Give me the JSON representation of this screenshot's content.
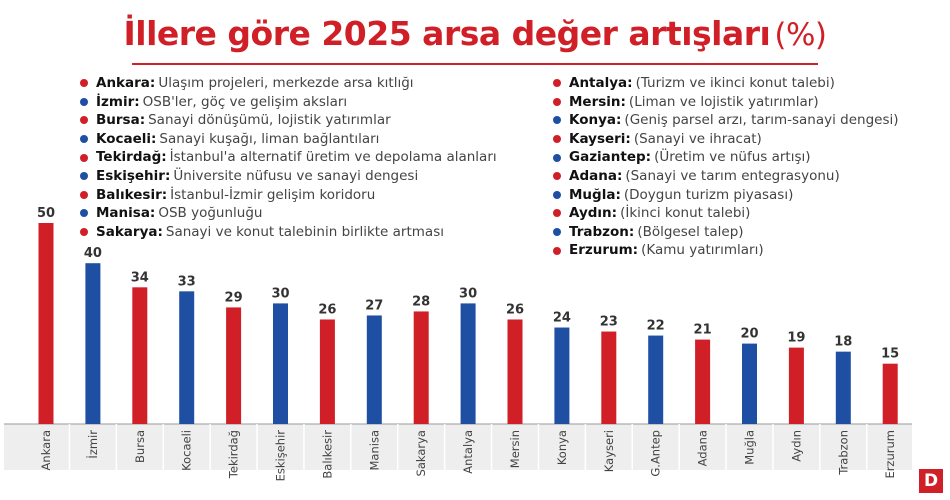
{
  "title": {
    "main": "İllere göre 2025 arsa değer artışları",
    "unit": "(%)"
  },
  "colors": {
    "red": "#d01f26",
    "blue": "#1f4fa3",
    "axis_bg": "#eeeeee",
    "gridline": "#cfcfcf"
  },
  "legend": {
    "left": [
      {
        "city": "Ankara:",
        "desc": "Ulaşım projeleri, merkezde arsa kıtlığı",
        "color": "red"
      },
      {
        "city": "İzmir:",
        "desc": "OSB'ler, göç ve gelişim aksları",
        "color": "blue"
      },
      {
        "city": "Bursa:",
        "desc": "Sanayi dönüşümü, lojistik yatırımlar",
        "color": "red"
      },
      {
        "city": "Kocaeli:",
        "desc": "Sanayi kuşağı, liman bağlantıları",
        "color": "blue"
      },
      {
        "city": "Tekirdağ:",
        "desc": "İstanbul'a alternatif üretim ve depolama alanları",
        "color": "red"
      },
      {
        "city": "Eskişehir:",
        "desc": "Üniversite nüfusu ve sanayi dengesi",
        "color": "blue"
      },
      {
        "city": "Balıkesir:",
        "desc": "İstanbul-İzmir gelişim koridoru",
        "color": "red"
      },
      {
        "city": "Manisa:",
        "desc": "OSB yoğunluğu",
        "color": "blue"
      },
      {
        "city": "Sakarya:",
        "desc": "Sanayi ve konut talebinin birlikte artması",
        "color": "red"
      }
    ],
    "right": [
      {
        "city": "Antalya:",
        "desc": "(Turizm ve ikinci konut talebi)",
        "color": "red"
      },
      {
        "city": "Mersin:",
        "desc": "(Liman ve lojistik yatırımlar)",
        "color": "red"
      },
      {
        "city": "Konya:",
        "desc": "(Geniş parsel arzı, tarım-sanayi dengesi)",
        "color": "blue"
      },
      {
        "city": "Kayseri:",
        "desc": "(Sanayi ve ihracat)",
        "color": "red"
      },
      {
        "city": "Gaziantep:",
        "desc": "(Üretim ve nüfus artışı)",
        "color": "blue"
      },
      {
        "city": "Adana:",
        "desc": "(Sanayi ve tarım entegrasyonu)",
        "color": "red"
      },
      {
        "city": "Muğla:",
        "desc": "(Doygun turizm piyasası)",
        "color": "blue"
      },
      {
        "city": "Aydın:",
        "desc": "(İkinci konut talebi)",
        "color": "red"
      },
      {
        "city": "Trabzon:",
        "desc": "(Bölgesel talep)",
        "color": "blue"
      },
      {
        "city": "Erzurum:",
        "desc": "(Kamu yatırımları)",
        "color": "red"
      }
    ]
  },
  "chart_data": {
    "type": "bar",
    "categories": [
      "Ankara",
      "İzmir",
      "Bursa",
      "Kocaeli",
      "Tekirdağ",
      "Eskişehir",
      "Balıkesir",
      "Manisa",
      "Sakarya",
      "Antalya",
      "Mersin",
      "Konya",
      "Kayseri",
      "G.Antep",
      "Adana",
      "Muğla",
      "Aydın",
      "Trabzon",
      "Erzurum"
    ],
    "values": [
      50,
      40,
      34,
      33,
      29,
      30,
      26,
      27,
      28,
      30,
      26,
      24,
      23,
      22,
      21,
      20,
      19,
      18,
      15
    ],
    "colors": [
      "red",
      "blue",
      "red",
      "blue",
      "red",
      "blue",
      "red",
      "blue",
      "red",
      "blue",
      "red",
      "blue",
      "red",
      "blue",
      "red",
      "blue",
      "red",
      "blue",
      "red"
    ],
    "title": "İllere göre 2025 arsa değer artışları (%)",
    "xlabel": "",
    "ylabel": "",
    "ylim": [
      0,
      50
    ],
    "grid": false,
    "data_labels": true
  },
  "brand": {
    "logo_letter": "D"
  }
}
